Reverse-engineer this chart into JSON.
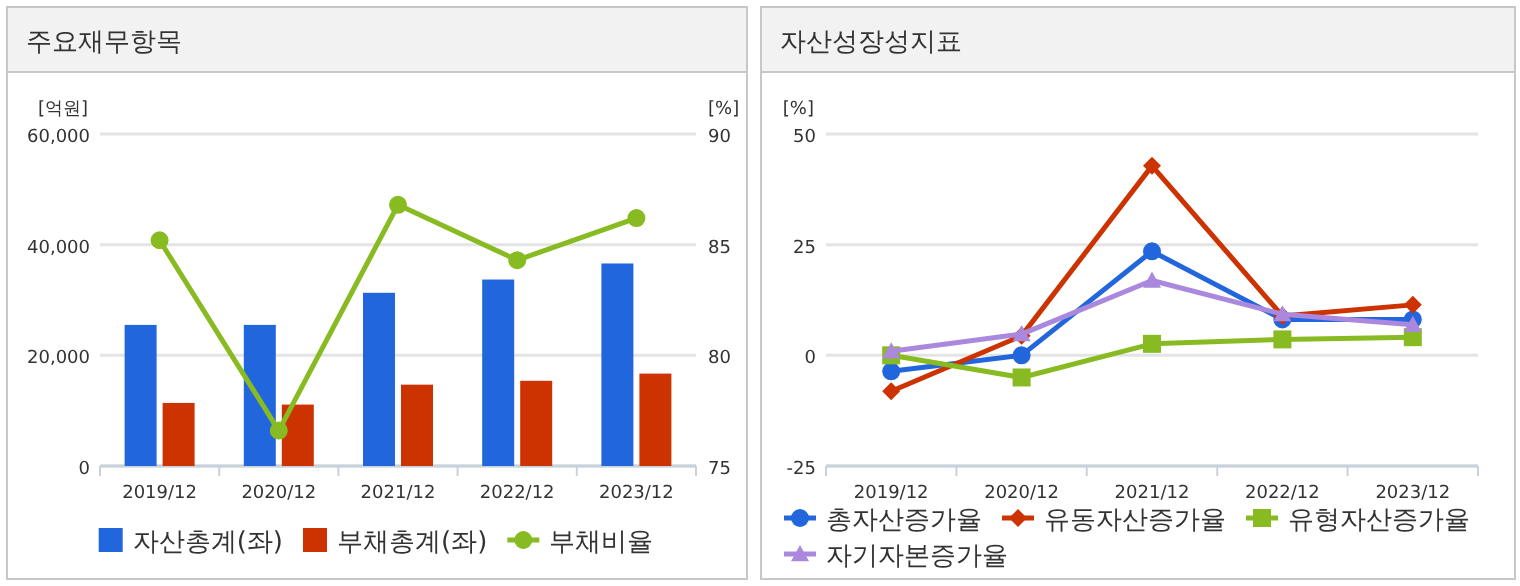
{
  "chart_data": [
    {
      "type": "bar",
      "title": "주요재무항목",
      "ylabel": "[억원]",
      "y2label": "[%]",
      "categories": [
        "2019/12",
        "2020/12",
        "2021/12",
        "2022/12",
        "2023/12"
      ],
      "series": [
        {
          "name": "자산총계(좌)",
          "color": "#2266dd",
          "values": [
            25500,
            25500,
            31300,
            33700,
            36600
          ]
        },
        {
          "name": "부채총계(좌)",
          "color": "#cc3300",
          "values": [
            11400,
            11100,
            14700,
            15400,
            16700
          ]
        },
        {
          "name": "부채비율",
          "type": "line",
          "axis": "y2",
          "marker": "circle",
          "color": "#88bb22",
          "values": [
            85.2,
            76.6,
            86.8,
            84.3,
            86.2
          ]
        }
      ],
      "ylim": [
        0,
        60000
      ],
      "yticks": [
        0,
        {
          "value": 20000,
          "label": "20,000"
        },
        {
          "value": 40000,
          "label": "40,000"
        },
        {
          "value": 60000,
          "label": "60,000"
        }
      ],
      "y2lim": [
        75,
        90
      ],
      "y2ticks": [
        75,
        80,
        85,
        90
      ],
      "grid": "y",
      "legend": "bottom"
    },
    {
      "type": "line",
      "title": "자산성장성지표",
      "ylabel": "[%]",
      "categories": [
        "2019/12",
        "2020/12",
        "2021/12",
        "2022/12",
        "2023/12"
      ],
      "series": [
        {
          "name": "총자산증가율",
          "marker": "circle",
          "color": "#2266dd",
          "values": [
            -3.6,
            0,
            23.5,
            8.1,
            8.1
          ]
        },
        {
          "name": "유동자산증가율",
          "marker": "diamond",
          "color": "#cc3300",
          "values": [
            -8.1,
            4.4,
            42.8,
            8.9,
            11.4
          ]
        },
        {
          "name": "유형자산증가율",
          "marker": "square",
          "color": "#88bb22",
          "values": [
            0,
            -5,
            2.6,
            3.6,
            4.1
          ]
        },
        {
          "name": "자기자본증가율",
          "marker": "triangle",
          "color": "#aa88dd",
          "values": [
            0.9,
            4.8,
            16.9,
            9.3,
            6.9
          ]
        }
      ],
      "ylim": [
        -25,
        50
      ],
      "yticks": [
        -25,
        0,
        25,
        50
      ],
      "grid": "y",
      "legend": "bottom"
    }
  ]
}
